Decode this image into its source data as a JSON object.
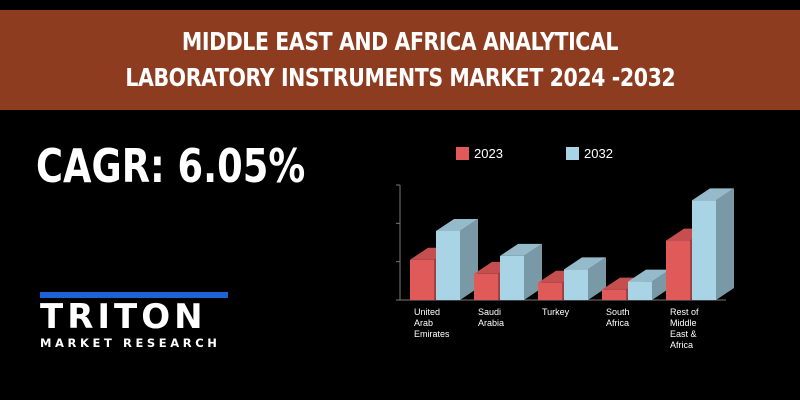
{
  "banner": {
    "line1": "MIDDLE EAST AND AFRICA ANALYTICAL",
    "line2": "LABORATORY INSTRUMENTS MARKET 2024 -2032"
  },
  "cagr": {
    "text": "CAGR: 6.05%"
  },
  "logo": {
    "word": "TRITON",
    "subtitle": "MARKET RESEARCH",
    "accent_color": "#1e63d6"
  },
  "colors": {
    "banner_bg": "#8e3c1f",
    "series_2023": "#e05a5a",
    "series_2032": "#a9d4e6"
  },
  "chart_data": {
    "type": "bar",
    "categories": [
      [
        "United",
        "Arab",
        "Emirates"
      ],
      [
        "Saudi",
        "Arabia"
      ],
      [
        "Turkey"
      ],
      [
        "South",
        "Africa"
      ],
      [
        "Rest of",
        "Middle",
        "East &",
        "Africa"
      ]
    ],
    "series": [
      {
        "name": "2023",
        "values": [
          1.05,
          0.68,
          0.45,
          0.27,
          1.55
        ]
      },
      {
        "name": "2032",
        "values": [
          1.8,
          1.15,
          0.8,
          0.48,
          2.6
        ]
      }
    ],
    "ylim": [
      0,
      3
    ],
    "legend_position": "top",
    "grid": false
  }
}
